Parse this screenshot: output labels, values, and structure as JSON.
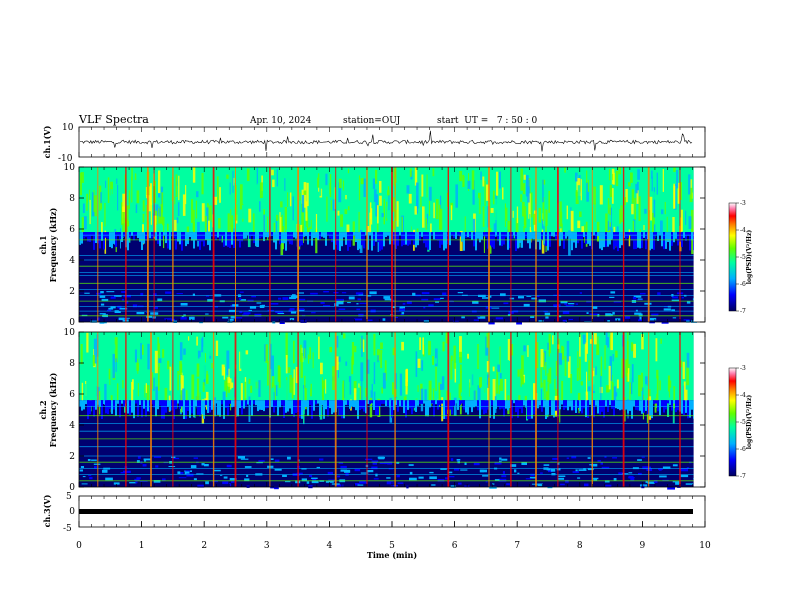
{
  "header": {
    "title": "VLF Spectra",
    "date": "Apr. 10, 2024",
    "station": "station=OUJ",
    "start": "start  UT =   7 : 50 : 0"
  },
  "colors": {
    "spectrum": [
      "#000060",
      "#0000ff",
      "#00b0ff",
      "#00ffa0",
      "#60ff00",
      "#ffff00",
      "#ff8000",
      "#ff0000",
      "#ff80b0",
      "#ffffff"
    ]
  },
  "chart_data": [
    {
      "id": "ch1-waveform",
      "type": "line",
      "ylabel": "ch.1(V)",
      "yticks": [
        "10",
        "-10"
      ],
      "ylim": [
        -10,
        10
      ],
      "baseline": 0,
      "xlim": [
        0,
        10
      ],
      "trace_end_min": 9.8
    },
    {
      "id": "ch1-spectrogram",
      "type": "heatmap",
      "ylabel": "ch.1\nFrequency (kHz)",
      "ylabel_lines": [
        "ch.1",
        "Frequency (kHz)"
      ],
      "yticks": [
        "0",
        "2",
        "4",
        "6",
        "8",
        "10"
      ],
      "ylim": [
        0,
        10
      ],
      "xlim": [
        0,
        10
      ],
      "colorbar": {
        "label": "log(PSD)(V²/Hz)",
        "ticks": [
          "-3",
          "-4",
          "-5",
          "-6",
          "-7"
        ],
        "range": [
          -7,
          -3
        ]
      },
      "noise_floor_khz": 5.8,
      "sferic_minutes": [
        0.3,
        0.75,
        1.1,
        1.2,
        1.5,
        2.15,
        2.5,
        3.05,
        3.5,
        4.1,
        4.6,
        5.0,
        5.05,
        5.9,
        6.55,
        6.9,
        7.3,
        7.65,
        8.2,
        8.7,
        9.1,
        9.6
      ],
      "hum_lines_khz": [
        0.4,
        0.7,
        1.0,
        1.35,
        1.7,
        2.1,
        2.5,
        3.0,
        3.2,
        3.6,
        4.0,
        4.3,
        5.3,
        5.6
      ]
    },
    {
      "id": "ch2-spectrogram",
      "type": "heatmap",
      "ylabel": "ch.2\nFrequency (kHz)",
      "ylabel_lines": [
        "ch.2",
        "Frequency (kHz)"
      ],
      "yticks": [
        "0",
        "2",
        "4",
        "6",
        "8",
        "10"
      ],
      "ylim": [
        0,
        10
      ],
      "xlim": [
        0,
        10
      ],
      "colorbar": {
        "label": "log(PSD)(V²/Hz)",
        "ticks": [
          "-3",
          "-4",
          "-5",
          "-6",
          "-7"
        ],
        "range": [
          -7,
          -3
        ]
      },
      "noise_floor_khz": 5.6,
      "sferic_minutes": [
        0.3,
        0.75,
        1.15,
        1.5,
        2.15,
        2.5,
        3.05,
        3.5,
        4.1,
        4.6,
        5.05,
        5.9,
        6.55,
        6.9,
        7.3,
        7.65,
        8.2,
        8.7,
        9.1,
        9.6
      ],
      "hum_lines_khz": [
        0.4,
        0.8,
        1.2,
        1.6,
        2.0,
        2.6,
        3.1,
        3.6,
        4.1,
        4.6,
        5.2
      ]
    },
    {
      "id": "ch3-waveform",
      "type": "line",
      "ylabel": "ch.3(V)",
      "yticks": [
        "5",
        "0",
        "-5"
      ],
      "ylim": [
        -5,
        5
      ],
      "baseline": 0,
      "xlim": [
        0,
        10
      ],
      "xlabel": "Time (min)",
      "xticks": [
        "0",
        "1",
        "2",
        "3",
        "4",
        "5",
        "6",
        "7",
        "8",
        "9",
        "10"
      ]
    }
  ]
}
